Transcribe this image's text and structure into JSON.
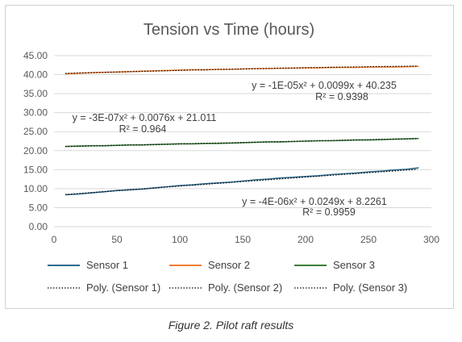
{
  "caption": "Figure 2. Pilot raft results",
  "chart_data": {
    "type": "line",
    "title": "Tension vs Time (hours)",
    "xlabel": "",
    "ylabel": "",
    "xlim": [
      0,
      300
    ],
    "ylim": [
      0,
      45
    ],
    "x_ticks": [
      0,
      50,
      100,
      150,
      200,
      250,
      300
    ],
    "x_tick_labels": [
      "0",
      "50",
      "100",
      "150",
      "200",
      "250",
      "300"
    ],
    "y_ticks": [
      0,
      5,
      10,
      15,
      20,
      25,
      30,
      35,
      40,
      45
    ],
    "y_tick_labels": [
      "0.00",
      "5.00",
      "10.00",
      "15.00",
      "20.00",
      "25.00",
      "30.00",
      "35.00",
      "40.00",
      "45.00"
    ],
    "grid": "horizontal",
    "legend_position": "bottom",
    "series": [
      {
        "name": "Sensor 1",
        "color": "#2e6a8e",
        "x": [
          9,
          20,
          30,
          40,
          50,
          60,
          70,
          80,
          90,
          100,
          110,
          120,
          130,
          140,
          150,
          160,
          170,
          180,
          190,
          200,
          210,
          220,
          230,
          240,
          250,
          260,
          270,
          280,
          290
        ],
        "values": [
          8.4,
          8.6,
          8.9,
          9.2,
          9.5,
          9.7,
          9.9,
          10.2,
          10.5,
          10.8,
          11.0,
          11.3,
          11.5,
          11.7,
          12.0,
          12.3,
          12.5,
          12.8,
          13.0,
          13.2,
          13.4,
          13.7,
          13.9,
          14.1,
          14.4,
          14.6,
          14.9,
          15.1,
          15.5
        ]
      },
      {
        "name": "Sensor 2",
        "color": "#ed7d31",
        "x": [
          9,
          20,
          30,
          40,
          50,
          60,
          70,
          80,
          90,
          100,
          110,
          120,
          130,
          140,
          150,
          160,
          170,
          180,
          190,
          200,
          210,
          220,
          230,
          240,
          250,
          260,
          270,
          280,
          290
        ],
        "values": [
          40.2,
          40.4,
          40.5,
          40.6,
          40.7,
          40.8,
          40.9,
          41.0,
          41.1,
          41.2,
          41.3,
          41.3,
          41.4,
          41.4,
          41.5,
          41.6,
          41.6,
          41.7,
          41.7,
          41.8,
          41.8,
          41.9,
          41.9,
          41.9,
          42.0,
          42.0,
          42.0,
          42.1,
          42.2
        ]
      },
      {
        "name": "Sensor 3",
        "color": "#3a7d3a",
        "x": [
          9,
          20,
          30,
          40,
          50,
          60,
          70,
          80,
          90,
          100,
          110,
          120,
          130,
          140,
          150,
          160,
          170,
          180,
          190,
          200,
          210,
          220,
          230,
          240,
          250,
          260,
          270,
          280,
          290
        ],
        "values": [
          21.1,
          21.2,
          21.3,
          21.3,
          21.4,
          21.5,
          21.5,
          21.6,
          21.7,
          21.8,
          21.8,
          21.9,
          21.9,
          22.0,
          22.1,
          22.2,
          22.3,
          22.3,
          22.4,
          22.5,
          22.6,
          22.6,
          22.7,
          22.8,
          22.8,
          22.9,
          23.0,
          23.1,
          23.2
        ]
      }
    ],
    "trendlines": [
      {
        "name": "Poly. (Sensor 1)",
        "of": "Sensor 1",
        "a": -4e-06,
        "b": 0.0249,
        "c": 8.2261,
        "equation": "y = -4E-06x² + 0.0249x + 8.2261",
        "r2": "R² = 0.9959"
      },
      {
        "name": "Poly. (Sensor 2)",
        "of": "Sensor 2",
        "a": -1e-05,
        "b": 0.0099,
        "c": 40.235,
        "equation": "y = -1E-05x² + 0.0099x + 40.235",
        "r2": "R² = 0.9398"
      },
      {
        "name": "Poly. (Sensor 3)",
        "of": "Sensor 3",
        "a": -3e-07,
        "b": 0.0076,
        "c": 21.011,
        "equation": "y = -3E-07x² + 0.0076x + 21.011",
        "r2": "R² = 0.964"
      }
    ]
  }
}
